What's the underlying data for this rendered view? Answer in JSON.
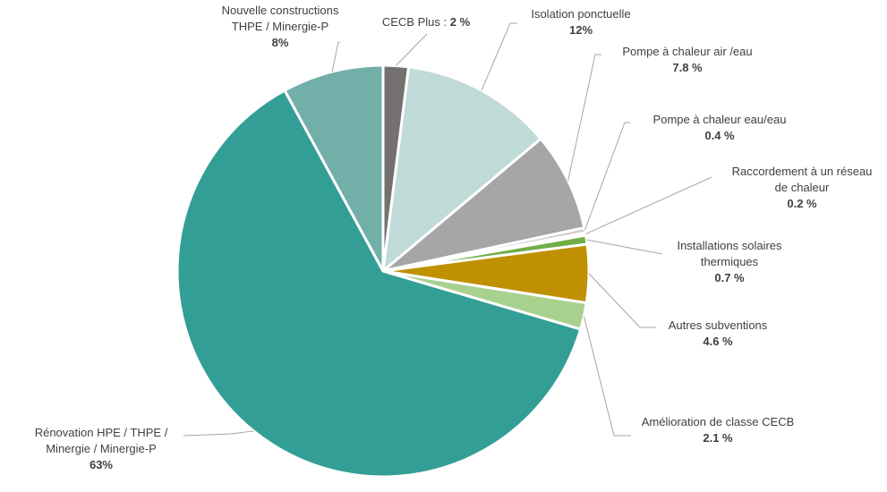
{
  "chart_data": {
    "type": "pie",
    "slices": [
      {
        "name": "CECB Plus :",
        "value_label": "2 %",
        "value": 2.0,
        "color": "#767171"
      },
      {
        "name": "Isolation ponctuelle",
        "value_label": "12%",
        "value": 12.0,
        "color": "#c0dad8"
      },
      {
        "name": "Pompe à chaleur air /eau",
        "value_label": "7.8 %",
        "value": 7.8,
        "color": "#a6a6a6"
      },
      {
        "name": "Pompe à chaleur eau/eau",
        "value_label": "0.4 %",
        "value": 0.4,
        "color": "#d0cece"
      },
      {
        "name": "Raccordement à un réseau de chaleur",
        "value_label": "0.2 %",
        "value": 0.2,
        "color": "#e7e6e6"
      },
      {
        "name": "Installations solaires thermiques",
        "value_label": "0.7 %",
        "value": 0.7,
        "color": "#70ad47"
      },
      {
        "name": "Autres subventions",
        "value_label": "4.6 %",
        "value": 4.6,
        "color": "#bf9000"
      },
      {
        "name": "Amélioration de classe CECB",
        "value_label": "2.1 %",
        "value": 2.1,
        "color": "#a9d18e"
      },
      {
        "name": "Rénovation HPE / THPE / Minergie / Minergie-P",
        "value_label": "63%",
        "value": 63.0,
        "color": "#339e95"
      },
      {
        "name": "Nouvelle constructions THPE / Minergie-P",
        "value_label": "8%",
        "value": 8.0,
        "color": "#72afa9"
      }
    ],
    "start": "12 o'clock",
    "direction": "clockwise",
    "legend": "none"
  },
  "labels": {
    "cecb_plus": {
      "name": "CECB Plus :",
      "value": "2 %"
    },
    "isolation": {
      "name": "Isolation ponctuelle",
      "value": "12%"
    },
    "pac_air": {
      "name": "Pompe à chaleur air /eau",
      "value": "7.8 %"
    },
    "pac_eau": {
      "name": "Pompe à chaleur eau/eau",
      "value": "0.4 %"
    },
    "reseau": {
      "line1": "Raccordement à un réseau",
      "line2": "de chaleur",
      "value": "0.2 %"
    },
    "solaire": {
      "line1": "Installations solaires",
      "line2": "thermiques",
      "value": "0.7 %"
    },
    "autres": {
      "name": "Autres subventions",
      "value": "4.6 %"
    },
    "amelioration": {
      "name": "Amélioration de classe CECB",
      "value": "2.1 %"
    },
    "renovation": {
      "line1": "Rénovation HPE / THPE /",
      "line2": "Minergie / Minergie-P",
      "value": "63%"
    },
    "nouvelle": {
      "line1": "Nouvelle constructions",
      "line2": "THPE / Minergie-P",
      "value": "8%"
    }
  },
  "colors": {
    "leader": "#a6a6a6",
    "slice_border": "#ffffff",
    "text": "#404040"
  }
}
